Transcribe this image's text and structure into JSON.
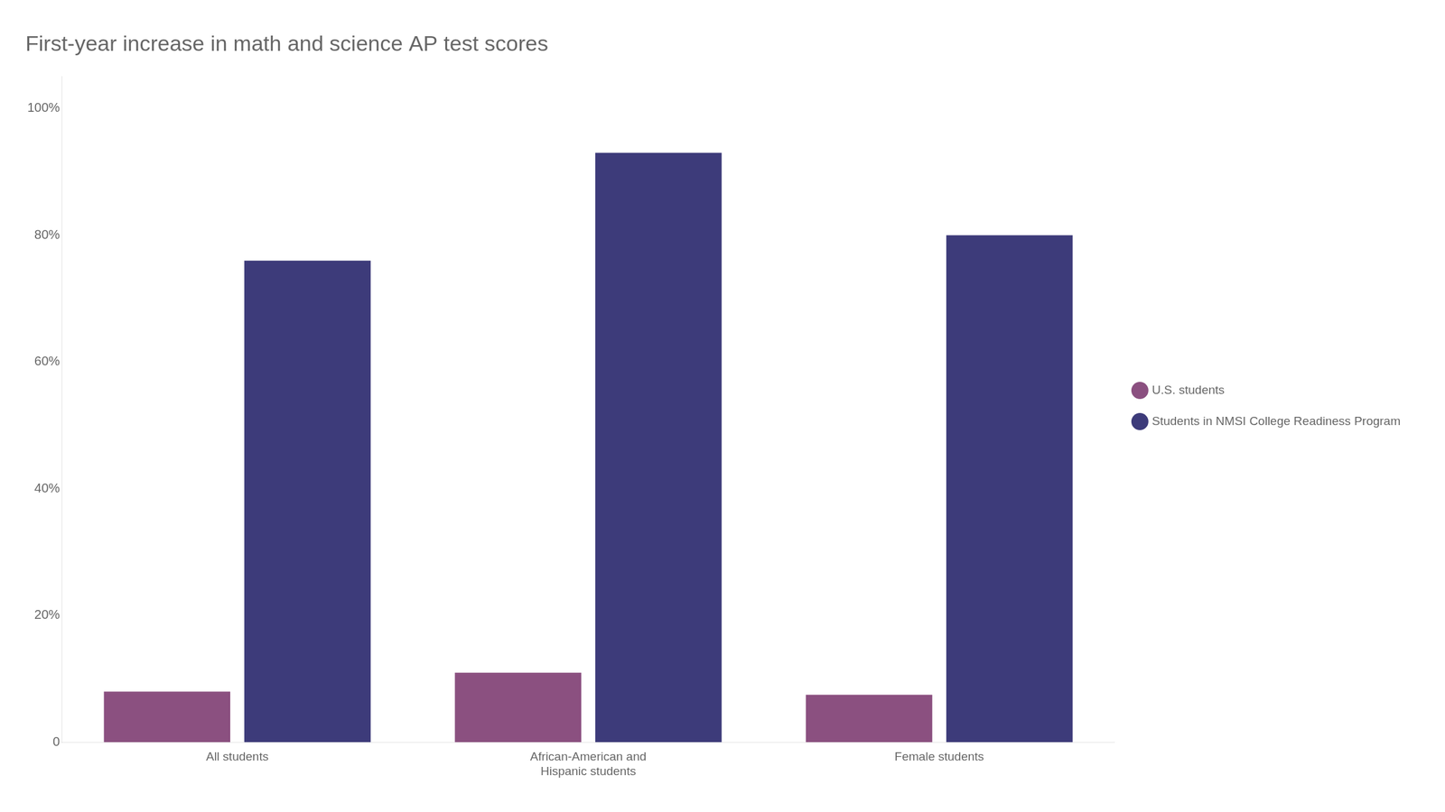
{
  "chart_data": {
    "type": "bar",
    "title": "First-year increase in math and science AP test scores",
    "categories": [
      "All students",
      "African-American and\nHispanic students",
      "Female students"
    ],
    "series": [
      {
        "name": "U.S. students",
        "color": "#8b5080",
        "values": [
          8,
          11,
          7.5
        ]
      },
      {
        "name": "Students in NMSI College Readiness Program",
        "color": "#3d3b7a",
        "values": [
          76,
          93,
          80
        ]
      }
    ],
    "ylim": [
      0,
      105
    ],
    "yticks": [
      0,
      {
        "value": 20,
        "label": "20%"
      },
      {
        "value": 40,
        "label": "40%"
      },
      {
        "value": 60,
        "label": "60%"
      },
      {
        "value": 80,
        "label": "80%"
      },
      {
        "value": 100,
        "label": "100%"
      }
    ],
    "grid": false,
    "legend": "right"
  }
}
